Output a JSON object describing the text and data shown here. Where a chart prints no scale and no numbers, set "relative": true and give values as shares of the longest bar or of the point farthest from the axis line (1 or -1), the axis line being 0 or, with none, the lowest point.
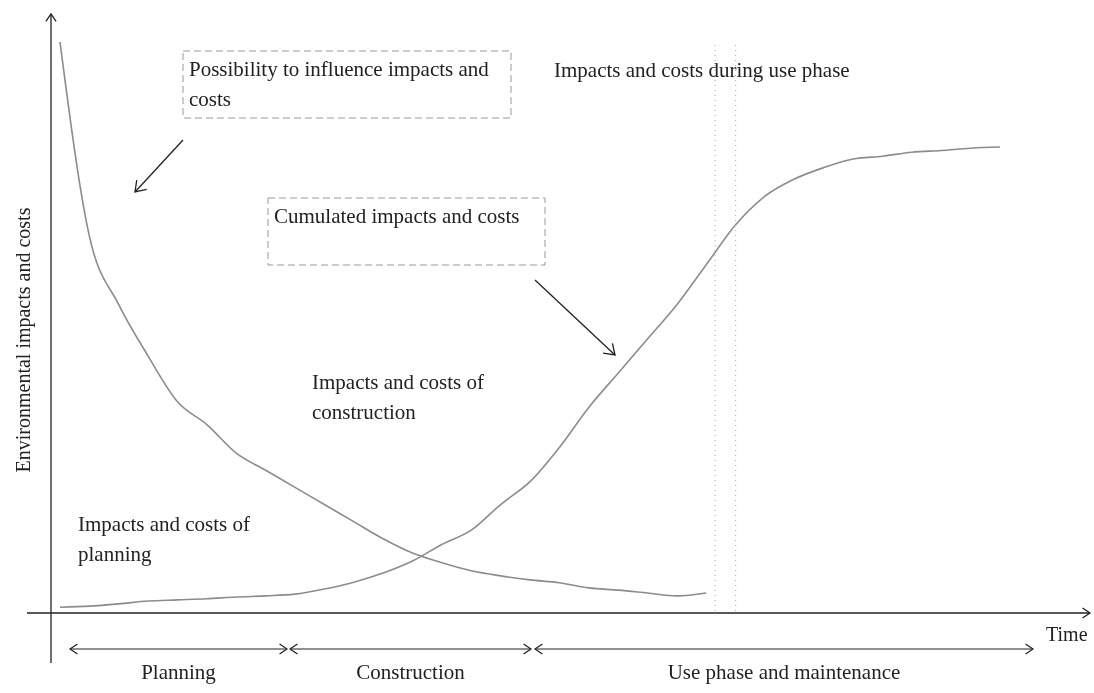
{
  "chart_data": {
    "type": "line",
    "relative": true,
    "marker": "none",
    "xlabel": "Time",
    "ylabel": "Environmental impacts and costs",
    "categories": [
      null,
      null,
      null,
      null,
      null,
      null,
      null,
      null,
      null,
      null,
      null,
      null,
      null,
      null,
      null,
      null,
      null,
      null,
      null,
      null,
      null,
      null,
      null,
      null,
      null,
      null,
      null,
      null,
      null,
      null,
      null,
      null,
      null
    ],
    "series": [
      {
        "color": "#8c8c8c",
        "values": [
          1.0,
          0.66,
          0.54,
          0.45,
          0.37,
          0.33,
          0.28,
          0.25,
          0.22,
          0.19,
          0.16,
          0.13,
          0.105,
          0.088,
          0.074,
          0.065,
          0.058,
          0.053,
          0.044,
          0.04,
          0.035,
          0.03,
          0.035,
          null,
          null,
          null,
          null,
          null,
          null,
          null,
          null,
          null,
          null
        ]
      },
      {
        "color": "#8c8c8c",
        "values": [
          0.01,
          0.012,
          0.016,
          0.021,
          0.023,
          0.025,
          0.028,
          0.03,
          0.033,
          0.042,
          0.054,
          0.07,
          0.091,
          0.12,
          0.145,
          0.19,
          0.23,
          0.29,
          0.36,
          0.42,
          0.48,
          0.54,
          0.61,
          0.68,
          0.73,
          0.76,
          0.78,
          0.795,
          0.8,
          0.807,
          0.81,
          0.814,
          0.816
        ]
      }
    ],
    "annotations": [
      "Possibility to influence impacts and costs",
      "Impacts and costs during use phase",
      "Cumulated impacts and costs",
      "Impacts and costs of construction",
      "Impacts and costs of planning",
      "Planning",
      "Construction",
      "Use phase and maintenance"
    ]
  }
}
